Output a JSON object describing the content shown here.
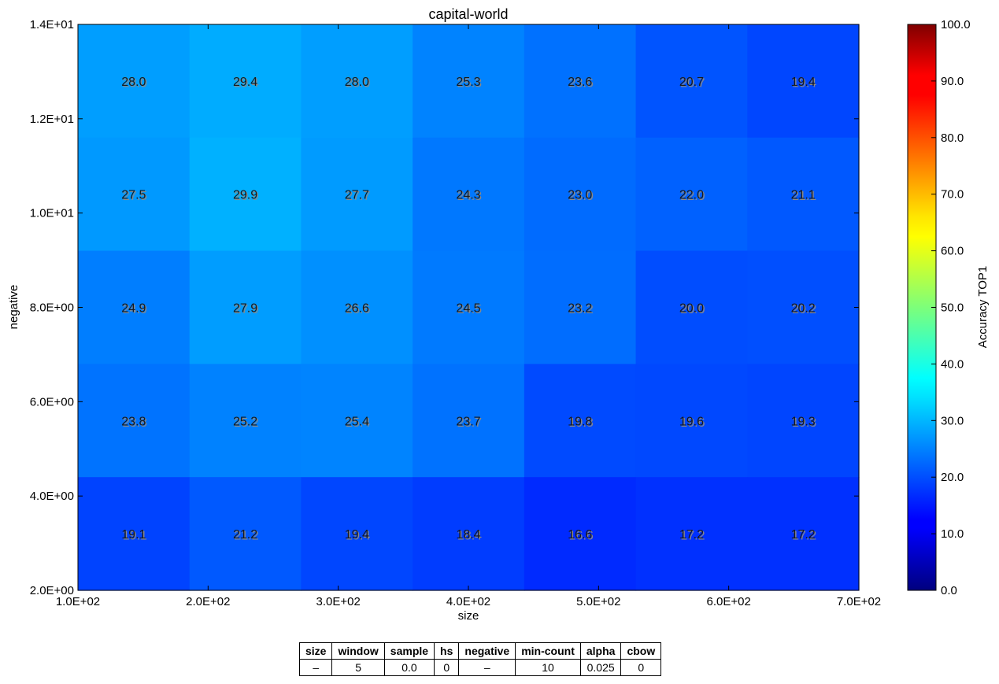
{
  "chart_data": {
    "type": "heatmap",
    "title": "capital-world",
    "xlabel": "size",
    "ylabel": "negative",
    "colorbar_label": "Accuracy TOP1",
    "colormap": "jet",
    "color_range": [
      0,
      100
    ],
    "xlim": [
      100,
      700
    ],
    "ylim": [
      2,
      14
    ],
    "x_ticks": [
      "1.0E+02",
      "2.0E+02",
      "3.0E+02",
      "4.0E+02",
      "5.0E+02",
      "6.0E+02",
      "7.0E+02"
    ],
    "y_ticks": [
      "2.0E+00",
      "4.0E+00",
      "6.0E+00",
      "8.0E+00",
      "1.0E+01",
      "1.2E+01",
      "1.4E+01"
    ],
    "colorbar_ticks": [
      "0.0",
      "10.0",
      "20.0",
      "30.0",
      "40.0",
      "50.0",
      "60.0",
      "70.0",
      "80.0",
      "90.0",
      "100.0"
    ],
    "rows": [
      [
        "28.0",
        "29.4",
        "28.0",
        "25.3",
        "23.6",
        "20.7",
        "19.4"
      ],
      [
        "27.5",
        "29.9",
        "27.7",
        "24.3",
        "23.0",
        "22.0",
        "21.1"
      ],
      [
        "24.9",
        "27.9",
        "26.6",
        "24.5",
        "23.2",
        "20.0",
        "20.2"
      ],
      [
        "23.8",
        "25.2",
        "25.4",
        "23.7",
        "19.8",
        "19.6",
        "19.3"
      ],
      [
        "19.1",
        "21.2",
        "19.4",
        "18.4",
        "16.6",
        "17.2",
        "17.2"
      ]
    ],
    "grid": false
  },
  "param_table": {
    "headers": [
      "size",
      "window",
      "sample",
      "hs",
      "negative",
      "min-count",
      "alpha",
      "cbow"
    ],
    "values": [
      "–",
      "5",
      "0.0",
      "0",
      "–",
      "10",
      "0.025",
      "0"
    ]
  }
}
